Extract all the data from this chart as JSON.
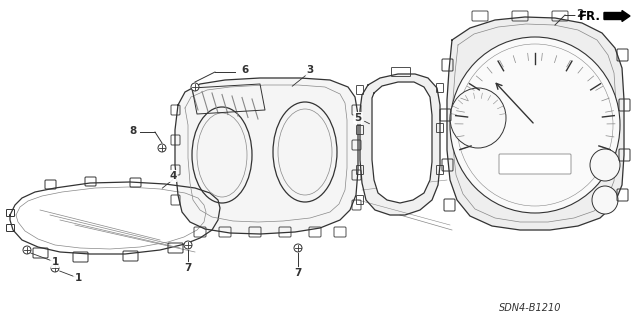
{
  "bg_color": "#ffffff",
  "diagram_code": "SDN4-B1210",
  "fr_label": "FR.",
  "line_color": "#333333",
  "gray_color": "#888888",
  "light_gray": "#bbbbbb"
}
